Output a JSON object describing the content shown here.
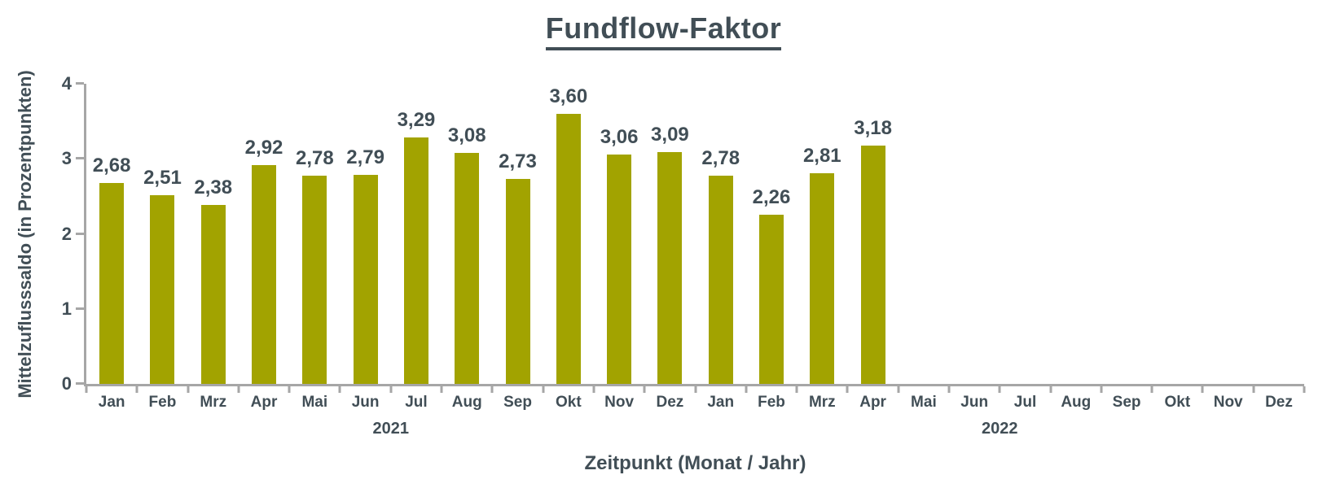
{
  "colors": {
    "bar": "#A2A300",
    "text": "#414E56",
    "axis": "#A6A6A6",
    "background": "#FFFFFF"
  },
  "chart_data": {
    "type": "bar",
    "title": "Fundflow-Faktor",
    "xlabel": "Zeitpunkt (Monat / Jahr)",
    "ylabel": "Mittelzuflusssaldo (in Prozentpunkten)",
    "ylim": [
      0,
      4
    ],
    "yticks": [
      "0",
      "1",
      "2",
      "3",
      "4"
    ],
    "grid": false,
    "legend": null,
    "categories": [
      "Jan",
      "Feb",
      "Mrz",
      "Apr",
      "Mai",
      "Jun",
      "Jul",
      "Aug",
      "Sep",
      "Okt",
      "Nov",
      "Dez",
      "Jan",
      "Feb",
      "Mrz",
      "Apr",
      "Mai",
      "Jun",
      "Jul",
      "Aug",
      "Sep",
      "Okt",
      "Nov",
      "Dez"
    ],
    "year_groups": [
      {
        "label": "2021",
        "start": 0,
        "end": 11
      },
      {
        "label": "2022",
        "start": 12,
        "end": 23
      }
    ],
    "values": [
      2.68,
      2.51,
      2.38,
      2.92,
      2.78,
      2.79,
      3.29,
      3.08,
      2.73,
      3.6,
      3.06,
      3.09,
      2.78,
      2.26,
      2.81,
      3.18,
      null,
      null,
      null,
      null,
      null,
      null,
      null,
      null
    ],
    "value_labels": [
      "2,68",
      "2,51",
      "2,38",
      "2,92",
      "2,78",
      "2,79",
      "3,29",
      "3,08",
      "2,73",
      "3,60",
      "3,06",
      "3,09",
      "2,78",
      "2,26",
      "2,81",
      "3,18",
      "",
      "",
      "",
      "",
      "",
      "",
      "",
      ""
    ]
  }
}
